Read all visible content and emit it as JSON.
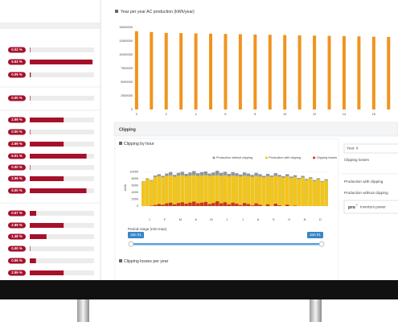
{
  "loss_rows": [
    {
      "value": 0.02,
      "label": "0.02 %"
    },
    {
      "value": 5.53,
      "label": "5.53 %"
    },
    {
      "value": 0.09,
      "label": "0.09 %"
    },
    {
      "value": 0,
      "label": "0.00 %"
    },
    {
      "value": 2.99,
      "label": "2.99 %"
    },
    {
      "value": 0,
      "label": "0.00 %"
    },
    {
      "value": 2.99,
      "label": "2.99 %"
    },
    {
      "value": 5.01,
      "label": "5.01 %"
    },
    {
      "value": 0,
      "label": "0.00 %"
    },
    {
      "value": 2.99,
      "label": "2.99 %"
    },
    {
      "value": 5,
      "label": "5.00 %"
    },
    {
      "value": 0.57,
      "label": "0.57 %"
    },
    {
      "value": 2.99,
      "label": "2.99 %"
    },
    {
      "value": 1.48,
      "label": "1.48 %"
    },
    {
      "value": 0,
      "label": "0.00 %"
    },
    {
      "value": 0.55,
      "label": "0.55 %"
    },
    {
      "value": 2.99,
      "label": "2.99 %"
    }
  ],
  "chart_data": [
    {
      "type": "bar",
      "title": "Year per year AC production (kWh/year)",
      "x": [
        0,
        1,
        2,
        3,
        4,
        5,
        6,
        7,
        8,
        9,
        10,
        11,
        12,
        13,
        14,
        15,
        16,
        17
      ],
      "values": [
        14300000,
        14150000,
        14000000,
        13950000,
        13900000,
        13850000,
        13800000,
        13750000,
        13700000,
        13650000,
        13600000,
        13550000,
        13500000,
        13450000,
        13400000,
        13350000,
        13300000,
        13250000
      ],
      "color": "#f0941f",
      "xlim": [
        -0.1,
        17.8
      ],
      "xticks": [
        0,
        2,
        4,
        6,
        8,
        10,
        12,
        14,
        16
      ],
      "ylim": [
        0,
        15000000
      ],
      "yticks": [
        0,
        2500000,
        5000000,
        7500000,
        10000000,
        12500000,
        15000000
      ],
      "grid": false
    },
    {
      "type": "overlay_bar",
      "title": "Clipping by hour",
      "y_label": "kWh",
      "categories": [
        "J",
        null,
        null,
        null,
        "F",
        null,
        null,
        null,
        "M",
        null,
        null,
        null,
        "A",
        null,
        null,
        null,
        "M",
        null,
        null,
        null,
        "J",
        null,
        null,
        null,
        "J",
        null,
        null,
        null,
        "A",
        null,
        null,
        null,
        "S",
        null,
        null,
        null,
        "O",
        null,
        null,
        null,
        "N",
        null,
        null,
        null,
        "D",
        null,
        null,
        null
      ],
      "series": [
        {
          "name": "Production without clipping",
          "color": "#8c96a3",
          "values": [
            7200,
            8100,
            7600,
            8900,
            9300,
            8800,
            9500,
            9900,
            9100,
            9700,
            10000,
            9400,
            9800,
            10200,
            9600,
            9900,
            10100,
            9500,
            9800,
            10300,
            9700,
            10000,
            9400,
            9900,
            9600,
            9200,
            9800,
            9500,
            9100,
            9700,
            9300,
            8800,
            9400,
            8900,
            9600,
            9100,
            8700,
            9300,
            8600,
            9000,
            8200,
            8800,
            7900,
            8400,
            7600,
            8100,
            7300,
            7800
          ]
        },
        {
          "name": "Production with clipping",
          "color": "#f2c51b",
          "values": [
            7000,
            7900,
            7400,
            8500,
            8700,
            8400,
            8800,
            9000,
            8600,
            8900,
            9000,
            8700,
            8900,
            9000,
            8800,
            8900,
            9000,
            8800,
            8900,
            9000,
            8800,
            9000,
            8700,
            8900,
            8800,
            8600,
            8900,
            8700,
            8500,
            8800,
            8600,
            8400,
            8700,
            8500,
            8800,
            8600,
            8300,
            8700,
            8200,
            8500,
            7900,
            8400,
            7600,
            8100,
            7300,
            7800,
            7100,
            7500
          ]
        },
        {
          "name": "Clipping losses",
          "color": "#c8361c",
          "values": [
            0,
            0,
            100,
            300,
            600,
            400,
            800,
            1000,
            500,
            900,
            1100,
            700,
            1000,
            1300,
            800,
            1000,
            1200,
            600,
            900,
            1400,
            800,
            1100,
            500,
            1000,
            700,
            300,
            900,
            600,
            200,
            800,
            400,
            0,
            500,
            0,
            700,
            200,
            0,
            400,
            0,
            100,
            0,
            0,
            0,
            0,
            0,
            0,
            0,
            0
          ]
        }
      ],
      "ylim": [
        0,
        10800
      ],
      "yticks": [
        0,
        2000,
        4000,
        6000,
        8000,
        10000
      ],
      "grid": true
    }
  ],
  "clipping": {
    "header": "Clipping",
    "range_label": "Period range (min-max)",
    "range_start": "Jan 01",
    "range_end": "Jan 01",
    "per_year": "Clipping losses per year"
  },
  "side": {
    "year": "Year: 0",
    "losses": "Clipping losses",
    "with": "Production with clipping",
    "without": "Production without clipping",
    "logo": "pro",
    "logo_sup": "6",
    "inverters": "Inverters power"
  }
}
